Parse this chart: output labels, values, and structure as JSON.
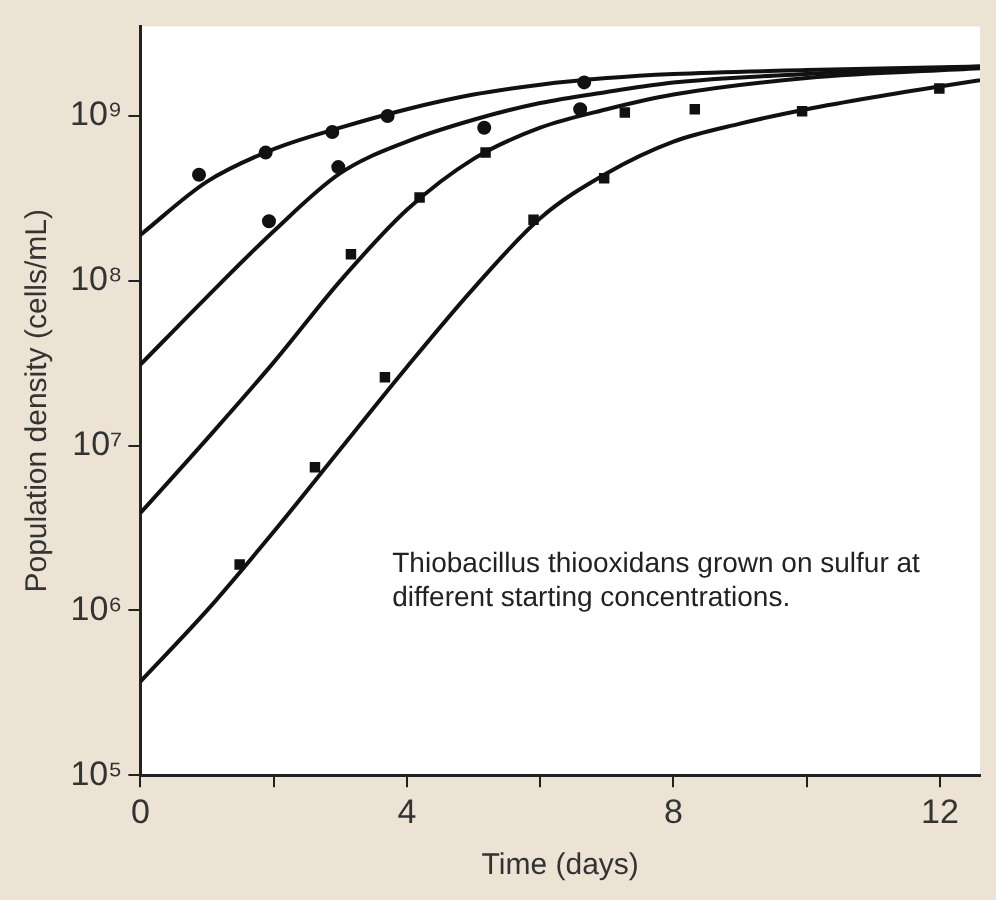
{
  "chart_data": {
    "type": "scatter",
    "xlabel": "Time (days)",
    "ylabel": "Population density (cells/mL)",
    "log": "y",
    "grid": false,
    "legend": false,
    "xlim": [
      0,
      12.6
    ],
    "xticks": [
      0,
      {
        "value": 2,
        "label": null
      },
      4,
      {
        "value": 6,
        "label": null
      },
      8,
      {
        "value": 10,
        "label": null
      },
      12
    ],
    "ylim": [
      100000,
      3500000000
    ],
    "yticks": [
      {
        "value": 100000,
        "label": "10⁵"
      },
      {
        "value": 1000000,
        "label": "10⁶"
      },
      {
        "value": 10000000,
        "label": "10⁷"
      },
      {
        "value": 100000000,
        "label": "10⁸"
      },
      {
        "value": 1000000000,
        "label": "10⁹"
      }
    ],
    "annotations": [
      "Thiobacillus thiooxidans grown on sulfur at different starting concentrations."
    ],
    "series": [
      {
        "marker": "circle",
        "color": "#111111",
        "x": [
          0.88,
          1.88,
          2.88,
          3.71,
          6.66
        ],
        "values": [
          440000000,
          600000000,
          800000000,
          1000000000,
          1600000000
        ]
      },
      {
        "marker": "circle",
        "color": "#111111",
        "x": [
          1.93,
          2.97,
          5.16,
          6.6
        ],
        "values": [
          230000000,
          490000000,
          850000000,
          1100000000
        ]
      },
      {
        "marker": "square",
        "color": "#111111",
        "x": [
          3.16,
          4.19,
          5.18,
          7.27,
          8.32
        ],
        "values": [
          145000000,
          320000000,
          600000000,
          1050000000,
          1100000000
        ]
      },
      {
        "marker": "square",
        "color": "#111111",
        "x": [
          1.49,
          2.62,
          3.67,
          5.9,
          6.96,
          9.93,
          11.99
        ],
        "values": [
          1900000,
          7400000,
          26000000,
          235000000,
          420000000,
          1070000000,
          1470000000
        ]
      },
      {
        "type": "line",
        "marker": "none",
        "color": "#111111",
        "x": [
          0,
          1,
          2,
          3,
          4,
          5,
          6,
          7,
          8,
          10,
          12.6
        ],
        "values": [
          190000000,
          400000000,
          630000000,
          850000000,
          1100000000,
          1350000000,
          1550000000,
          1700000000,
          1800000000,
          1900000000,
          2000000000
        ]
      },
      {
        "type": "line",
        "marker": "none",
        "color": "#111111",
        "x": [
          0,
          1,
          2,
          3,
          4,
          5,
          6,
          7,
          8,
          10,
          12.6
        ],
        "values": [
          31000000,
          80000000,
          200000000,
          450000000,
          700000000,
          950000000,
          1200000000,
          1400000000,
          1600000000,
          1800000000,
          2000000000
        ]
      },
      {
        "type": "line",
        "marker": "none",
        "color": "#111111",
        "x": [
          0,
          1,
          2,
          3,
          4,
          5,
          6,
          7,
          8,
          10,
          12.6
        ],
        "values": [
          3900000,
          11000000,
          32000000,
          100000000,
          270000000,
          550000000,
          850000000,
          1100000000,
          1350000000,
          1700000000,
          1950000000
        ]
      },
      {
        "type": "line",
        "marker": "none",
        "color": "#111111",
        "x": [
          0,
          1,
          2,
          3,
          4,
          5,
          6,
          7,
          8,
          9,
          10,
          11,
          12.6
        ],
        "values": [
          370000,
          1000000,
          3000000,
          9500000,
          30000000,
          90000000,
          240000000,
          450000000,
          700000000,
          900000000,
          1100000000,
          1300000000,
          1650000000
        ]
      }
    ]
  }
}
